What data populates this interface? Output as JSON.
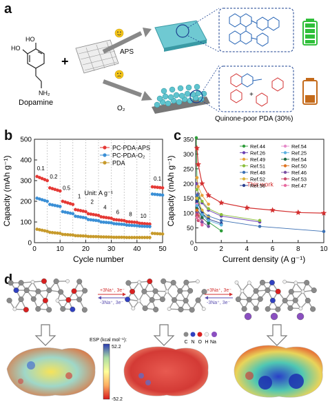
{
  "panel_a": {
    "letter": "a",
    "reactant_label": "Dopamine",
    "oh_top": "HO",
    "oh_side": "HO",
    "nh2": "NH₂",
    "plus": "+",
    "arrow_top_label": "APS",
    "arrow_bottom_label": "O₂",
    "product_caption": "Quinone-poor PDA (30%)",
    "struct_plus": "+",
    "battery_top_color": "#2fbf3a",
    "battery_bottom_color": "#c46a1a",
    "icons": [
      "happy-face-icon",
      "neutral-face-icon",
      "battery-full-icon",
      "battery-low-icon"
    ]
  },
  "panel_b": {
    "letter": "b"
  },
  "panel_c": {
    "letter": "c"
  },
  "panel_d": {
    "letter": "d",
    "step1_top": "+3Na⁺, 3e⁻",
    "step1_bottom": "-3Na⁺, 3e⁻",
    "step2_top": "+3Na⁺, 3e⁻",
    "step2_bottom": "-3Na⁺, 3e⁻",
    "esp_title": "ESP (kcal mol⁻¹):",
    "esp_max": "52.2",
    "esp_min": "-52.2",
    "atom_legend": [
      "C",
      "N",
      "O",
      "H",
      "Na"
    ]
  },
  "chart_data": [
    {
      "type": "scatter",
      "panel": "b",
      "xlabel": "Cycle number",
      "ylabel": "Capacity (mAh g⁻¹)",
      "xlim": [
        0,
        50
      ],
      "ylim": [
        0,
        500
      ],
      "xticks": [
        0,
        10,
        20,
        30,
        40,
        50
      ],
      "yticks": [
        0,
        100,
        200,
        300,
        400,
        500
      ],
      "unit_note": "Unit: A g⁻¹",
      "rate_labels": [
        {
          "text": "0.1",
          "x": 2.5,
          "y": 350
        },
        {
          "text": "0.2",
          "x": 7.5,
          "y": 310
        },
        {
          "text": "0.5",
          "x": 12.5,
          "y": 255
        },
        {
          "text": "1",
          "x": 17.5,
          "y": 215
        },
        {
          "text": "2",
          "x": 22.5,
          "y": 188
        },
        {
          "text": "4",
          "x": 27.5,
          "y": 162
        },
        {
          "text": "6",
          "x": 32.5,
          "y": 138
        },
        {
          "text": "8",
          "x": 37.5,
          "y": 128
        },
        {
          "text": "10",
          "x": 42.5,
          "y": 120
        },
        {
          "text": "0.1",
          "x": 48,
          "y": 300
        }
      ],
      "dividers": [
        5,
        10,
        15,
        20,
        25,
        30,
        35,
        40,
        45
      ],
      "legend_position": "top-right",
      "series": [
        {
          "name": "PC-PDA-APS",
          "color": "#e53935",
          "segments": [
            [
              1,
              320
            ],
            [
              5,
              300
            ],
            [
              6,
              265
            ],
            [
              10,
              250
            ],
            [
              11,
              200
            ],
            [
              15,
              185
            ],
            [
              16,
              160
            ],
            [
              20,
              150
            ],
            [
              21,
              140
            ],
            [
              25,
              132
            ],
            [
              26,
              125
            ],
            [
              30,
              118
            ],
            [
              31,
              112
            ],
            [
              35,
              107
            ],
            [
              36,
              102
            ],
            [
              40,
              98
            ],
            [
              41,
              94
            ],
            [
              45,
              90
            ],
            [
              46,
              270
            ],
            [
              50,
              265
            ]
          ]
        },
        {
          "name": "PC-PDA-O₂",
          "color": "#3a8fd6",
          "segments": [
            [
              1,
              215
            ],
            [
              5,
              200
            ],
            [
              6,
              185
            ],
            [
              10,
              175
            ],
            [
              11,
              150
            ],
            [
              15,
              140
            ],
            [
              16,
              128
            ],
            [
              20,
              120
            ],
            [
              21,
              112
            ],
            [
              25,
              106
            ],
            [
              26,
              100
            ],
            [
              30,
              96
            ],
            [
              31,
              92
            ],
            [
              35,
              88
            ],
            [
              36,
              85
            ],
            [
              40,
              82
            ],
            [
              41,
              80
            ],
            [
              45,
              78
            ],
            [
              46,
              235
            ],
            [
              50,
              230
            ]
          ]
        },
        {
          "name": "PDA",
          "color": "#c79a2b",
          "segments": [
            [
              1,
              65
            ],
            [
              5,
              55
            ],
            [
              6,
              50
            ],
            [
              10,
              45
            ],
            [
              11,
              40
            ],
            [
              15,
              37
            ],
            [
              16,
              34
            ],
            [
              20,
              32
            ],
            [
              21,
              30
            ],
            [
              25,
              29
            ],
            [
              26,
              28
            ],
            [
              30,
              27
            ],
            [
              31,
              26
            ],
            [
              35,
              26
            ],
            [
              36,
              25
            ],
            [
              40,
              25
            ],
            [
              41,
              25
            ],
            [
              45,
              25
            ],
            [
              46,
              45
            ],
            [
              50,
              42
            ]
          ]
        }
      ]
    },
    {
      "type": "line",
      "panel": "c",
      "xlabel": "Current density (A g⁻¹)",
      "ylabel": "Capacity (mAh g⁻¹)",
      "xlim": [
        0,
        10
      ],
      "ylim": [
        0,
        350
      ],
      "xticks": [
        0,
        2,
        4,
        6,
        8,
        10
      ],
      "yticks": [
        0,
        50,
        100,
        150,
        200,
        250,
        300,
        350
      ],
      "this_work_label": "This work",
      "legend_position": "top-right",
      "series": [
        {
          "name": "This work",
          "color": "#d32f2f",
          "marker": "star",
          "x": [
            0.1,
            0.2,
            0.5,
            1,
            2,
            4,
            6,
            8,
            10
          ],
          "y": [
            320,
            265,
            200,
            160,
            135,
            118,
            110,
            102,
            100
          ]
        },
        {
          "name": "Ref.44",
          "color": "#2e9d3a",
          "marker": "circle",
          "x": [
            0.05,
            0.1,
            0.2,
            0.5,
            1,
            2
          ],
          "y": [
            355,
            220,
            150,
            100,
            70,
            40
          ]
        },
        {
          "name": "Ref.26",
          "color": "#6a3fb3",
          "marker": "circle",
          "x": [
            0.1,
            0.2,
            0.5,
            1,
            2,
            5
          ],
          "y": [
            200,
            165,
            135,
            110,
            90,
            70
          ]
        },
        {
          "name": "Ref.49",
          "color": "#e8a23a",
          "marker": "circle",
          "x": [
            0.1,
            0.2,
            0.5,
            1
          ],
          "y": [
            220,
            190,
            160,
            130
          ]
        },
        {
          "name": "Ref.51",
          "color": "#8bbf3a",
          "marker": "circle",
          "x": [
            0.1,
            0.5,
            1,
            2,
            5
          ],
          "y": [
            180,
            140,
            115,
            95,
            75
          ]
        },
        {
          "name": "Ref.48",
          "color": "#3a6fb3",
          "marker": "circle",
          "x": [
            0.1,
            0.2,
            0.5,
            1,
            2,
            5,
            10
          ],
          "y": [
            160,
            130,
            105,
            90,
            75,
            55,
            38
          ]
        },
        {
          "name": "Ref.52",
          "color": "#d9b33a",
          "marker": "circle",
          "x": [
            0.1,
            0.5,
            1
          ],
          "y": [
            150,
            110,
            85
          ]
        },
        {
          "name": "Ref.56",
          "color": "#2a3f8f",
          "marker": "circle",
          "x": [
            0.1,
            0.5,
            1,
            2
          ],
          "y": [
            140,
            100,
            80,
            65
          ]
        },
        {
          "name": "Ref.54",
          "color": "#e58ac9",
          "marker": "circle",
          "x": [
            0.1,
            0.2,
            0.5
          ],
          "y": [
            130,
            100,
            80
          ]
        },
        {
          "name": "Ref.25",
          "color": "#5ab0e0",
          "marker": "circle",
          "x": [
            0.1,
            0.5,
            1,
            2
          ],
          "y": [
            125,
            95,
            75,
            60
          ]
        },
        {
          "name": "Ref.54",
          "color": "#1f6b45",
          "marker": "circle",
          "x": [
            0.1,
            0.5,
            1
          ],
          "y": [
            115,
            85,
            65
          ]
        },
        {
          "name": "Ref.50",
          "color": "#e0731f",
          "marker": "circle",
          "x": [
            0.1,
            0.2,
            0.5
          ],
          "y": [
            110,
            90,
            70
          ]
        },
        {
          "name": "Ref.46",
          "color": "#7a4fa3",
          "marker": "circle",
          "x": [
            0.1,
            0.5,
            1
          ],
          "y": [
            100,
            70,
            55
          ]
        },
        {
          "name": "Ref.53",
          "color": "#c94a6a",
          "marker": "circle",
          "x": [
            0.1,
            0.2
          ],
          "y": [
            95,
            75
          ]
        },
        {
          "name": "Ref.47",
          "color": "#e86aa0",
          "marker": "circle",
          "x": [
            0.1,
            0.5
          ],
          "y": [
            85,
            60
          ]
        }
      ]
    }
  ]
}
